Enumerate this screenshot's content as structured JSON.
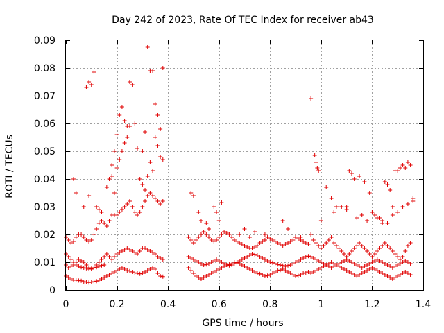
{
  "chart_data": {
    "type": "scatter",
    "title": "Day 242 of 2023, Rate Of TEC Index for receiver ab43",
    "xlabel": "GPS time / hours",
    "ylabel": "ROTI / TECUs",
    "xlim": [
      0,
      1.4
    ],
    "ylim": [
      0,
      0.09
    ],
    "xticks": [
      "0",
      "0.2",
      "0.4",
      "0.6",
      "0.8",
      "1",
      "1.2",
      "1.4"
    ],
    "yticks": [
      "0",
      "0.01",
      "0.02",
      "0.03",
      "0.04",
      "0.05",
      "0.06",
      "0.07",
      "0.08",
      "0.09"
    ],
    "grid": true,
    "marker": "+",
    "color": "#e00000",
    "series": [
      {
        "x": [
          0.0,
          0.01,
          0.02,
          0.03,
          0.04,
          0.05,
          0.06,
          0.07,
          0.08,
          0.09,
          0.1,
          0.11,
          0.12,
          0.13,
          0.14,
          0.15,
          0.16,
          0.17,
          0.18,
          0.19,
          0.2,
          0.21,
          0.22,
          0.23,
          0.24,
          0.25,
          0.26,
          0.27,
          0.28,
          0.29,
          0.3,
          0.31,
          0.32,
          0.33,
          0.34,
          0.35,
          0.36,
          0.37,
          0.38,
          0.0,
          0.01,
          0.02,
          0.03,
          0.04,
          0.05,
          0.06,
          0.07,
          0.08,
          0.09,
          0.1,
          0.11,
          0.12,
          0.13,
          0.14,
          0.15,
          0.16,
          0.17,
          0.18,
          0.19,
          0.2,
          0.21,
          0.22,
          0.23,
          0.24,
          0.25,
          0.26,
          0.27,
          0.28,
          0.29,
          0.3,
          0.31,
          0.32,
          0.33,
          0.34,
          0.35,
          0.36,
          0.37,
          0.38,
          0.0,
          0.01,
          0.02,
          0.03,
          0.04,
          0.05,
          0.06,
          0.07,
          0.08,
          0.09,
          0.1,
          0.11,
          0.12,
          0.13,
          0.14,
          0.15,
          0.16,
          0.17,
          0.18,
          0.19,
          0.2,
          0.21,
          0.22,
          0.23,
          0.24,
          0.25,
          0.26,
          0.27,
          0.28,
          0.29,
          0.3,
          0.31,
          0.32,
          0.33,
          0.34,
          0.35,
          0.36,
          0.37,
          0.38,
          0.0,
          0.01,
          0.02,
          0.03,
          0.04,
          0.05,
          0.06,
          0.07,
          0.08,
          0.09,
          0.1,
          0.11,
          0.12,
          0.13,
          0.14,
          0.15,
          0.08,
          0.09,
          0.1,
          0.11,
          0.16,
          0.17,
          0.18,
          0.19,
          0.2,
          0.21,
          0.22,
          0.23,
          0.24,
          0.25,
          0.26,
          0.27,
          0.28,
          0.3,
          0.31,
          0.32,
          0.33,
          0.34,
          0.35,
          0.36,
          0.37,
          0.38,
          0.35,
          0.36,
          0.37,
          0.38,
          0.29,
          0.3,
          0.31,
          0.32,
          0.33,
          0.34,
          0.03,
          0.04,
          0.07,
          0.09,
          0.12,
          0.13,
          0.14,
          0.18,
          0.19,
          0.2,
          0.21,
          0.22,
          0.23,
          0.24,
          0.25,
          0.48,
          0.49,
          0.5,
          0.51,
          0.52,
          0.53,
          0.54,
          0.55,
          0.56,
          0.57,
          0.58,
          0.59,
          0.6,
          0.61,
          0.62,
          0.63,
          0.64,
          0.65,
          0.66,
          0.67,
          0.68,
          0.69,
          0.7,
          0.71,
          0.72,
          0.73,
          0.74,
          0.75,
          0.76,
          0.77,
          0.78,
          0.79,
          0.8,
          0.81,
          0.82,
          0.83,
          0.84,
          0.85,
          0.86,
          0.87,
          0.88,
          0.89,
          0.9,
          0.91,
          0.92,
          0.93,
          0.94,
          0.95,
          0.48,
          0.49,
          0.5,
          0.51,
          0.52,
          0.53,
          0.54,
          0.55,
          0.56,
          0.57,
          0.58,
          0.59,
          0.6,
          0.61,
          0.62,
          0.63,
          0.64,
          0.65,
          0.66,
          0.67,
          0.68,
          0.69,
          0.7,
          0.71,
          0.72,
          0.73,
          0.74,
          0.75,
          0.76,
          0.77,
          0.78,
          0.79,
          0.8,
          0.81,
          0.82,
          0.83,
          0.84,
          0.85,
          0.86,
          0.87,
          0.88,
          0.89,
          0.9,
          0.91,
          0.92,
          0.93,
          0.94,
          0.95,
          0.48,
          0.49,
          0.5,
          0.51,
          0.52,
          0.53,
          0.54,
          0.55,
          0.56,
          0.57,
          0.58,
          0.59,
          0.6,
          0.61,
          0.62,
          0.63,
          0.64,
          0.65,
          0.66,
          0.67,
          0.68,
          0.69,
          0.7,
          0.71,
          0.72,
          0.73,
          0.74,
          0.75,
          0.76,
          0.77,
          0.78,
          0.79,
          0.8,
          0.81,
          0.82,
          0.83,
          0.84,
          0.85,
          0.86,
          0.87,
          0.88,
          0.89,
          0.9,
          0.91,
          0.92,
          0.93,
          0.94,
          0.95,
          0.49,
          0.5,
          0.52,
          0.53,
          0.55,
          0.56,
          0.58,
          0.59,
          0.6,
          0.61,
          0.66,
          0.68,
          0.7,
          0.72,
          0.74,
          0.78,
          0.85,
          0.87,
          0.9,
          0.92,
          0.96,
          0.97,
          0.98,
          0.99,
          1.0,
          1.01,
          1.02,
          1.03,
          1.04,
          1.05,
          1.06,
          1.07,
          1.08,
          1.09,
          1.1,
          1.11,
          1.12,
          1.13,
          1.14,
          1.15,
          1.16,
          1.17,
          1.18,
          1.19,
          1.2,
          1.21,
          1.22,
          1.23,
          1.24,
          1.25,
          1.26,
          1.27,
          1.28,
          1.29,
          1.3,
          1.31,
          1.32,
          1.33,
          1.34,
          1.35,
          0.96,
          0.97,
          0.98,
          0.99,
          1.0,
          1.01,
          1.02,
          1.03,
          1.04,
          1.05,
          1.06,
          1.07,
          1.08,
          1.09,
          1.1,
          1.11,
          1.12,
          1.13,
          1.14,
          1.15,
          1.16,
          1.17,
          1.18,
          1.19,
          1.2,
          1.21,
          1.22,
          1.23,
          1.24,
          1.25,
          1.26,
          1.27,
          1.28,
          1.29,
          1.3,
          1.31,
          1.32,
          1.33,
          1.34,
          1.35,
          0.96,
          0.97,
          0.98,
          0.99,
          1.0,
          1.01,
          1.02,
          1.03,
          1.04,
          1.05,
          1.06,
          1.07,
          1.08,
          1.09,
          1.1,
          1.11,
          1.12,
          1.13,
          1.14,
          1.15,
          1.16,
          1.17,
          1.18,
          1.19,
          1.2,
          1.21,
          1.22,
          1.23,
          1.24,
          1.25,
          1.26,
          1.27,
          1.28,
          1.29,
          1.3,
          1.31,
          1.32,
          1.33,
          1.34,
          1.35,
          0.96,
          0.975,
          0.98,
          0.985,
          0.99,
          1.02,
          1.04,
          1.06,
          1.08,
          1.1,
          1.11,
          1.12,
          1.13,
          1.15,
          1.17,
          1.19,
          1.21,
          1.23,
          1.24,
          1.25,
          1.26,
          1.27,
          1.28,
          1.29,
          1.3,
          1.31,
          1.32,
          1.33,
          1.34,
          1.35,
          1.36,
          1.0,
          1.05,
          1.1,
          1.14,
          1.16,
          1.18,
          1.2,
          1.22,
          1.24,
          1.26,
          1.28,
          1.3,
          1.32,
          1.34,
          1.36
        ],
        "y": [
          0.019,
          0.018,
          0.017,
          0.0175,
          0.019,
          0.02,
          0.02,
          0.019,
          0.018,
          0.0175,
          0.018,
          0.02,
          0.022,
          0.024,
          0.025,
          0.024,
          0.023,
          0.025,
          0.027,
          0.027,
          0.027,
          0.028,
          0.029,
          0.03,
          0.031,
          0.032,
          0.03,
          0.028,
          0.027,
          0.028,
          0.03,
          0.032,
          0.034,
          0.035,
          0.034,
          0.033,
          0.032,
          0.031,
          0.032,
          0.009,
          0.008,
          0.0085,
          0.009,
          0.01,
          0.011,
          0.0105,
          0.01,
          0.009,
          0.008,
          0.0075,
          0.008,
          0.009,
          0.01,
          0.011,
          0.012,
          0.013,
          0.012,
          0.011,
          0.012,
          0.013,
          0.0135,
          0.014,
          0.0145,
          0.015,
          0.0145,
          0.014,
          0.0135,
          0.013,
          0.014,
          0.015,
          0.015,
          0.0145,
          0.014,
          0.0135,
          0.013,
          0.012,
          0.0115,
          0.011,
          0.005,
          0.0045,
          0.004,
          0.0035,
          0.0035,
          0.0034,
          0.0033,
          0.003,
          0.0028,
          0.0027,
          0.0028,
          0.003,
          0.0032,
          0.0035,
          0.004,
          0.0045,
          0.005,
          0.0055,
          0.006,
          0.0065,
          0.007,
          0.0075,
          0.008,
          0.0075,
          0.007,
          0.0068,
          0.0065,
          0.0062,
          0.006,
          0.0058,
          0.006,
          0.0065,
          0.007,
          0.0075,
          0.008,
          0.0075,
          0.006,
          0.005,
          0.0048,
          0.013,
          0.012,
          0.011,
          0.01,
          0.009,
          0.0085,
          0.0082,
          0.008,
          0.0078,
          0.0075,
          0.0077,
          0.008,
          0.0082,
          0.0085,
          0.0088,
          0.009,
          0.073,
          0.075,
          0.074,
          0.0785,
          0.037,
          0.04,
          0.045,
          0.05,
          0.056,
          0.063,
          0.066,
          0.061,
          0.059,
          0.075,
          0.074,
          0.06,
          0.051,
          0.05,
          0.057,
          0.0875,
          0.079,
          0.079,
          0.067,
          0.063,
          0.058,
          0.08,
          0.055,
          0.052,
          0.048,
          0.047,
          0.04,
          0.038,
          0.036,
          0.041,
          0.046,
          0.043,
          0.04,
          0.035,
          0.03,
          0.034,
          0.03,
          0.029,
          0.028,
          0.041,
          0.035,
          0.044,
          0.047,
          0.05,
          0.053,
          0.055,
          0.059,
          0.019,
          0.018,
          0.017,
          0.018,
          0.019,
          0.02,
          0.021,
          0.02,
          0.019,
          0.018,
          0.0175,
          0.018,
          0.019,
          0.02,
          0.021,
          0.0205,
          0.02,
          0.019,
          0.018,
          0.0175,
          0.017,
          0.0165,
          0.016,
          0.0155,
          0.015,
          0.015,
          0.0155,
          0.016,
          0.017,
          0.0175,
          0.018,
          0.019,
          0.0185,
          0.018,
          0.0175,
          0.017,
          0.0165,
          0.016,
          0.0165,
          0.017,
          0.0175,
          0.018,
          0.019,
          0.0185,
          0.018,
          0.0175,
          0.017,
          0.0165,
          0.012,
          0.0115,
          0.011,
          0.0105,
          0.01,
          0.0095,
          0.009,
          0.0092,
          0.0095,
          0.01,
          0.0105,
          0.011,
          0.0105,
          0.01,
          0.0095,
          0.009,
          0.0088,
          0.009,
          0.0095,
          0.01,
          0.0105,
          0.011,
          0.0115,
          0.012,
          0.0125,
          0.013,
          0.0128,
          0.0125,
          0.012,
          0.0115,
          0.011,
          0.0105,
          0.01,
          0.0098,
          0.0095,
          0.0092,
          0.009,
          0.0088,
          0.0085,
          0.0088,
          0.009,
          0.0095,
          0.01,
          0.0105,
          0.011,
          0.0115,
          0.012,
          0.0122,
          0.008,
          0.007,
          0.006,
          0.005,
          0.0045,
          0.004,
          0.0045,
          0.005,
          0.0055,
          0.006,
          0.0065,
          0.007,
          0.0075,
          0.008,
          0.0085,
          0.009,
          0.0092,
          0.0095,
          0.01,
          0.0098,
          0.0095,
          0.009,
          0.0085,
          0.008,
          0.0075,
          0.007,
          0.0065,
          0.006,
          0.0058,
          0.0055,
          0.005,
          0.0052,
          0.0055,
          0.006,
          0.0065,
          0.007,
          0.0072,
          0.0075,
          0.007,
          0.0065,
          0.006,
          0.0055,
          0.005,
          0.0052,
          0.0055,
          0.006,
          0.0062,
          0.0065,
          0.035,
          0.034,
          0.028,
          0.025,
          0.024,
          0.022,
          0.03,
          0.028,
          0.025,
          0.0315,
          0.018,
          0.02,
          0.022,
          0.019,
          0.021,
          0.02,
          0.025,
          0.022,
          0.019,
          0.019,
          0.02,
          0.018,
          0.017,
          0.016,
          0.015,
          0.016,
          0.017,
          0.018,
          0.019,
          0.017,
          0.016,
          0.015,
          0.014,
          0.013,
          0.012,
          0.013,
          0.014,
          0.015,
          0.016,
          0.017,
          0.016,
          0.015,
          0.014,
          0.013,
          0.012,
          0.013,
          0.014,
          0.015,
          0.016,
          0.017,
          0.016,
          0.015,
          0.014,
          0.013,
          0.012,
          0.011,
          0.012,
          0.014,
          0.016,
          0.017,
          0.012,
          0.0115,
          0.011,
          0.0105,
          0.01,
          0.0095,
          0.009,
          0.0085,
          0.008,
          0.0085,
          0.009,
          0.0095,
          0.01,
          0.0105,
          0.011,
          0.0105,
          0.01,
          0.0095,
          0.009,
          0.0085,
          0.008,
          0.0085,
          0.009,
          0.0095,
          0.01,
          0.0105,
          0.011,
          0.0105,
          0.01,
          0.0095,
          0.009,
          0.0085,
          0.008,
          0.0085,
          0.009,
          0.0095,
          0.01,
          0.0105,
          0.01,
          0.0095,
          0.006,
          0.0065,
          0.007,
          0.0075,
          0.008,
          0.0085,
          0.009,
          0.0095,
          0.01,
          0.0095,
          0.009,
          0.0085,
          0.008,
          0.0075,
          0.007,
          0.0065,
          0.006,
          0.0055,
          0.005,
          0.0055,
          0.006,
          0.0065,
          0.007,
          0.0075,
          0.008,
          0.0075,
          0.007,
          0.0065,
          0.006,
          0.0055,
          0.005,
          0.0045,
          0.004,
          0.0045,
          0.005,
          0.0055,
          0.006,
          0.0065,
          0.006,
          0.0055,
          0.069,
          0.0485,
          0.046,
          0.044,
          0.043,
          0.037,
          0.033,
          0.03,
          0.03,
          0.029,
          0.043,
          0.042,
          0.04,
          0.041,
          0.039,
          0.035,
          0.027,
          0.026,
          0.024,
          0.039,
          0.038,
          0.036,
          0.03,
          0.043,
          0.043,
          0.044,
          0.045,
          0.044,
          0.046,
          0.045,
          0.033,
          0.025,
          0.028,
          0.03,
          0.026,
          0.027,
          0.025,
          0.028,
          0.026,
          0.025,
          0.024,
          0.027,
          0.028,
          0.03,
          0.031,
          0.032
        ]
      }
    ]
  }
}
